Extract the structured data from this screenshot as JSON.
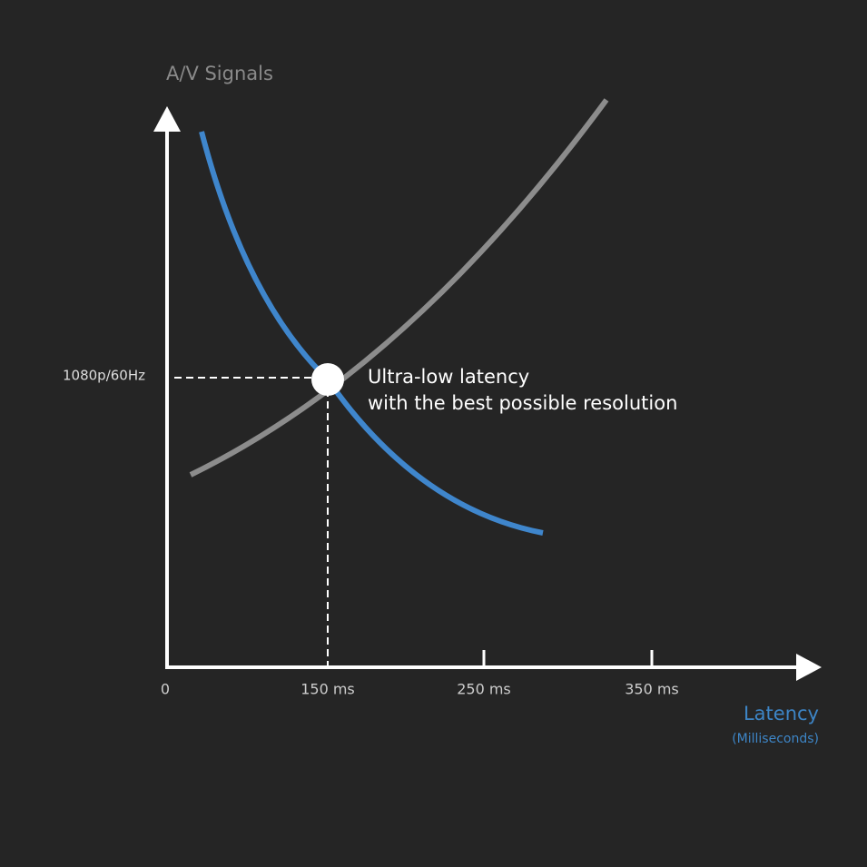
{
  "y_axis": {
    "title": "A/V Signals",
    "marker_label": "1080p/60Hz"
  },
  "x_axis": {
    "title": "Latency",
    "subtitle": "(Milliseconds)",
    "ticks": [
      "0",
      "150 ms",
      "250 ms",
      "350 ms"
    ]
  },
  "annotation": {
    "lines": [
      "Ultra-low latency",
      "with the best possible resolution"
    ]
  }
}
